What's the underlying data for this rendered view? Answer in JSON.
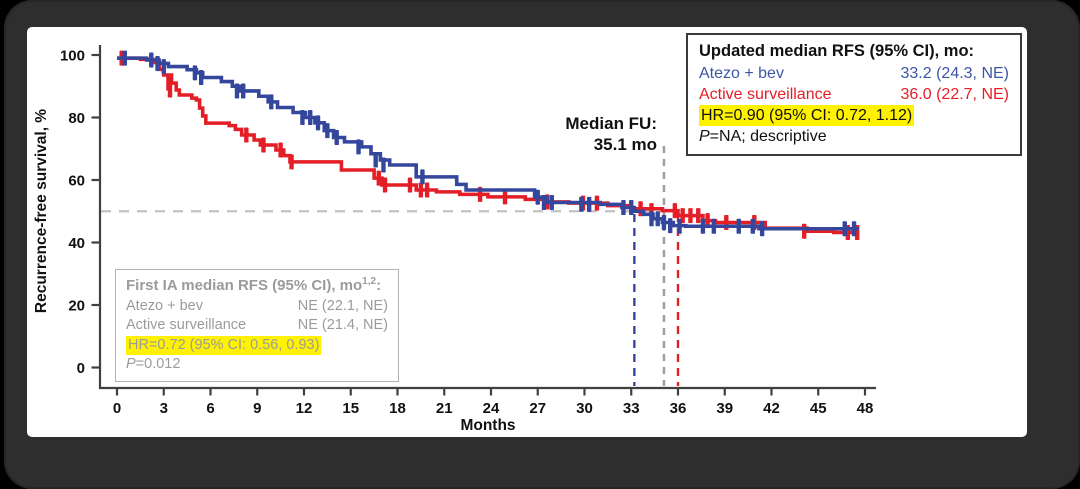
{
  "colors": {
    "atezo_blue": "#35479C",
    "surveillance_red": "#E41E26",
    "legend_blue_text": "#3D55A8",
    "legend_red_text": "#E41E26",
    "highlight_yellow": "#FFF200",
    "gray_text": "#9b9b9b",
    "axis": "#404040",
    "dashed_gray": "#9e9e9e",
    "dashed_light_gray": "#c2c2c2",
    "frame_dark": "#2e2e2e"
  },
  "median_fu_label": {
    "line1": "Median FU:",
    "line2": "35.1 mo"
  },
  "updated_box": {
    "title": "Updated median RFS (95% CI), mo:",
    "rows": [
      {
        "label": "Atezo + bev",
        "value": "33.2 (24.3, NE)"
      },
      {
        "label": "Active surveillance",
        "value": "36.0 (22.7, NE)"
      }
    ],
    "hr_line": "HR=0.90 (95% CI: 0.72, 1.12)",
    "p_prefix": "P",
    "p_rest": "=NA; descriptive"
  },
  "first_ia_box": {
    "title_main": "First IA median RFS (95% CI), mo",
    "title_sup": "1,2",
    "title_colon": ":",
    "rows": [
      {
        "label": "Atezo + bev",
        "value": "NE (22.1, NE)"
      },
      {
        "label": "Active surveillance",
        "value": "NE (21.4, NE)"
      }
    ],
    "hr_line": "HR=0.72 (95% CI: 0.56, 0.93)",
    "p_prefix": "P",
    "p_rest": "=0.012"
  },
  "chart_data": {
    "type": "line",
    "subtype": "kaplan-meier-step",
    "title": "",
    "xlabel": "Months",
    "ylabel": "Recurrence-free survival, %",
    "xlim": [
      0,
      48
    ],
    "ylim": [
      0,
      100
    ],
    "xticks": [
      0,
      3,
      6,
      9,
      12,
      15,
      18,
      21,
      24,
      27,
      30,
      33,
      36,
      39,
      42,
      45,
      48
    ],
    "yticks": [
      0,
      20,
      40,
      60,
      80,
      100
    ],
    "grid": false,
    "reference_lines": {
      "horizontal_pct": 50,
      "median_fu_month": 35.1,
      "atezo_median_month": 33.2,
      "surveillance_median_month": 36.0
    },
    "series": [
      {
        "name": "Active surveillance",
        "color": "#E41E26",
        "steps": [
          [
            0,
            99
          ],
          [
            1.5,
            98.6
          ],
          [
            2.3,
            97.6
          ],
          [
            2.7,
            95.4
          ],
          [
            3.0,
            93.6
          ],
          [
            3.5,
            91.0
          ],
          [
            3.8,
            88.8
          ],
          [
            4.0,
            87.2
          ],
          [
            4.8,
            86.2
          ],
          [
            5.1,
            85.6
          ],
          [
            5.3,
            83.0
          ],
          [
            5.5,
            80.5
          ],
          [
            5.7,
            78.2
          ],
          [
            7.2,
            77.4
          ],
          [
            7.6,
            76.2
          ],
          [
            8.0,
            74.4
          ],
          [
            8.8,
            72.8
          ],
          [
            9.2,
            71.2
          ],
          [
            10.2,
            69.6
          ],
          [
            10.7,
            67.8
          ],
          [
            11.1,
            65.8
          ],
          [
            14.4,
            63.2
          ],
          [
            16.5,
            60.6
          ],
          [
            17.0,
            58.4
          ],
          [
            19.2,
            56.8
          ],
          [
            20.5,
            56.2
          ],
          [
            22.0,
            55.4
          ],
          [
            23.8,
            54.6
          ],
          [
            26.2,
            53.8
          ],
          [
            27.4,
            53.0
          ],
          [
            29.0,
            52.6
          ],
          [
            31.5,
            51.8
          ],
          [
            33.0,
            50.8
          ],
          [
            35.0,
            50.2
          ],
          [
            36.0,
            48.6
          ],
          [
            37.6,
            47.0
          ],
          [
            38.4,
            46.4
          ],
          [
            41.6,
            44.6
          ],
          [
            44.3,
            43.6
          ],
          [
            46.0,
            43.2
          ],
          [
            47.6,
            43.2
          ]
        ],
        "censors": [
          [
            0.3,
            99
          ],
          [
            3.3,
            91.0
          ],
          [
            3.4,
            88.8
          ],
          [
            8.3,
            74.4
          ],
          [
            9.4,
            71.2
          ],
          [
            10.5,
            69.6
          ],
          [
            11.2,
            65.8
          ],
          [
            16.8,
            60.6
          ],
          [
            17.2,
            58.4
          ],
          [
            18.8,
            58.4
          ],
          [
            19.5,
            56.8
          ],
          [
            19.9,
            56.8
          ],
          [
            23.3,
            55.4
          ],
          [
            24.9,
            54.6
          ],
          [
            27.6,
            53.0
          ],
          [
            29.9,
            52.6
          ],
          [
            30.8,
            52.6
          ],
          [
            33.6,
            50.8
          ],
          [
            34.3,
            50.2
          ],
          [
            35.8,
            50.2
          ],
          [
            36.3,
            48.6
          ],
          [
            36.8,
            48.6
          ],
          [
            37.3,
            48.6
          ],
          [
            37.9,
            47.0
          ],
          [
            39.1,
            46.4
          ],
          [
            40.9,
            46.4
          ],
          [
            44.1,
            43.6
          ],
          [
            46.9,
            43.2
          ],
          [
            47.5,
            43.2
          ]
        ]
      },
      {
        "name": "Atezo + bev",
        "color": "#35479C",
        "steps": [
          [
            0,
            99
          ],
          [
            1.9,
            98.4
          ],
          [
            2.7,
            97.3
          ],
          [
            3.3,
            96.3
          ],
          [
            4.5,
            95.3
          ],
          [
            5.1,
            94.3
          ],
          [
            5.5,
            92.8
          ],
          [
            6.7,
            91.5
          ],
          [
            7.4,
            90.0
          ],
          [
            7.9,
            88.5
          ],
          [
            9.1,
            86.8
          ],
          [
            9.7,
            85.0
          ],
          [
            10.3,
            83.2
          ],
          [
            11.3,
            81.6
          ],
          [
            12.1,
            80.0
          ],
          [
            12.7,
            78.3
          ],
          [
            13.3,
            75.8
          ],
          [
            13.9,
            73.6
          ],
          [
            14.6,
            72.2
          ],
          [
            15.7,
            70.6
          ],
          [
            16.3,
            68.4
          ],
          [
            16.9,
            66.4
          ],
          [
            17.5,
            64.8
          ],
          [
            19.2,
            61.0
          ],
          [
            21.8,
            58.6
          ],
          [
            22.4,
            56.8
          ],
          [
            26.8,
            54.5
          ],
          [
            27.6,
            52.8
          ],
          [
            31.0,
            52.2
          ],
          [
            32.4,
            51.2
          ],
          [
            33.2,
            50.0
          ],
          [
            33.8,
            49.0
          ],
          [
            34.4,
            47.6
          ],
          [
            35.0,
            46.4
          ],
          [
            35.7,
            45.4
          ],
          [
            36.5,
            45.2
          ],
          [
            41.2,
            44.4
          ],
          [
            47.6,
            44.4
          ]
        ],
        "censors": [
          [
            0.5,
            99
          ],
          [
            2.2,
            98.4
          ],
          [
            2.6,
            97.3
          ],
          [
            3.0,
            96.3
          ],
          [
            5.0,
            94.3
          ],
          [
            5.4,
            92.8
          ],
          [
            7.7,
            88.5
          ],
          [
            8.1,
            88.5
          ],
          [
            9.9,
            85.0
          ],
          [
            11.9,
            80.0
          ],
          [
            12.4,
            80.0
          ],
          [
            12.9,
            78.3
          ],
          [
            13.5,
            75.8
          ],
          [
            14.1,
            73.6
          ],
          [
            15.5,
            70.6
          ],
          [
            16.6,
            66.4
          ],
          [
            17.1,
            64.8
          ],
          [
            19.6,
            61.0
          ],
          [
            27.0,
            54.5
          ],
          [
            27.4,
            52.8
          ],
          [
            27.9,
            52.8
          ],
          [
            29.8,
            52.2
          ],
          [
            30.3,
            52.2
          ],
          [
            32.5,
            51.2
          ],
          [
            33.0,
            51.2
          ],
          [
            34.3,
            47.6
          ],
          [
            34.7,
            47.6
          ],
          [
            35.1,
            46.4
          ],
          [
            35.5,
            45.4
          ],
          [
            36.1,
            45.2
          ],
          [
            37.6,
            45.2
          ],
          [
            38.3,
            45.2
          ],
          [
            39.9,
            45.2
          ],
          [
            40.8,
            45.2
          ],
          [
            41.4,
            44.4
          ],
          [
            46.7,
            44.4
          ],
          [
            47.3,
            44.4
          ]
        ]
      }
    ]
  }
}
